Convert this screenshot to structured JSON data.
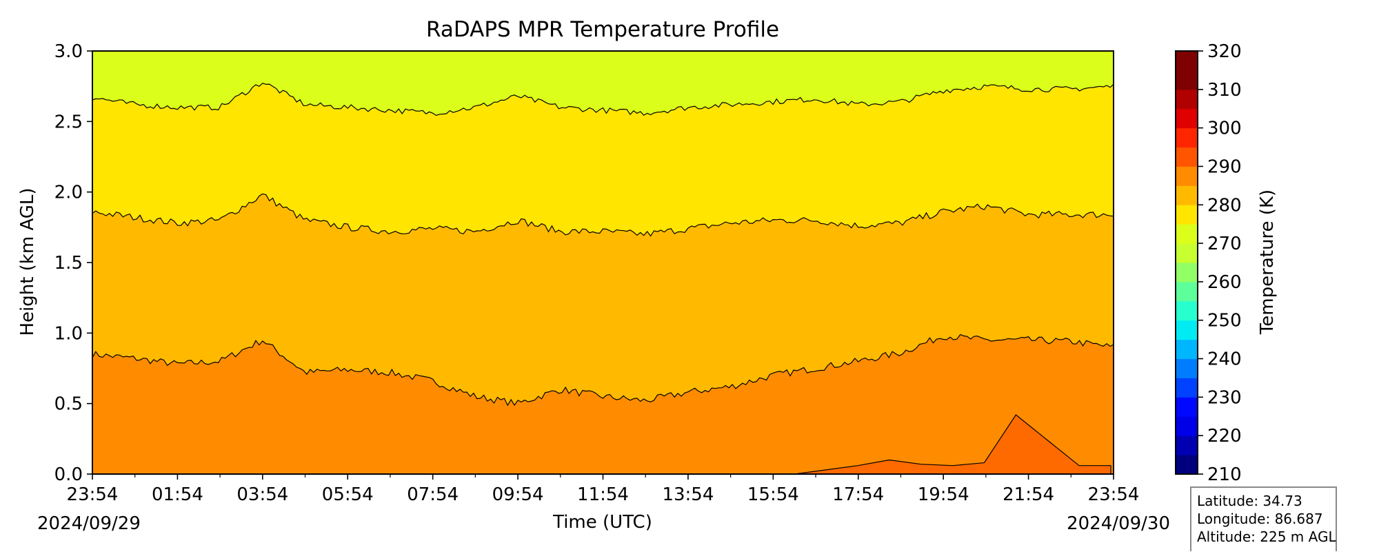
{
  "chart_data": {
    "type": "contour",
    "title": "RaDAPS MPR Temperature Profile",
    "xlabel": "Time (UTC)",
    "ylabel": "Height (km AGL)",
    "x_ticks": [
      "23:54",
      "01:54",
      "03:54",
      "05:54",
      "07:54",
      "09:54",
      "11:54",
      "13:54",
      "15:54",
      "17:54",
      "19:54",
      "21:54",
      "23:54"
    ],
    "x_range": [
      "2024/09/29 23:54",
      "2024/09/30 23:54"
    ],
    "date_start_label": "2024/09/29",
    "date_end_label": "2024/09/30",
    "y_ticks": [
      "0.0",
      "0.5",
      "1.0",
      "1.5",
      "2.0",
      "2.5",
      "3.0"
    ],
    "ylim": [
      0,
      3.0
    ],
    "colorbar": {
      "label": "Temperature (K)",
      "range": [
        210,
        320
      ],
      "step": 5,
      "tick_labels": [
        "210",
        "220",
        "230",
        "240",
        "250",
        "260",
        "270",
        "280",
        "290",
        "300",
        "310",
        "320"
      ],
      "colors": [
        "#00007f",
        "#0000b2",
        "#0000e8",
        "#0008ff",
        "#0042ff",
        "#007cff",
        "#00b6ff",
        "#00ecf2",
        "#27ffcf",
        "#5cff9a",
        "#92ff65",
        "#c7ff30",
        "#dbff1a",
        "#ffe500",
        "#ffba00",
        "#ff8c00",
        "#ff5500",
        "#ff2500",
        "#e00000",
        "#b10000",
        "#7f0000",
        "#7f0000"
      ]
    },
    "filled_bands": [
      {
        "range_K": [
          290,
          295
        ],
        "color": "#ff8c00"
      },
      {
        "range_K": [
          285,
          290
        ],
        "color": "#ffba00"
      },
      {
        "range_K": [
          280,
          285
        ],
        "color": "#ffe500"
      },
      {
        "range_K": [
          275,
          280
        ],
        "color": "#dbff1a"
      },
      {
        "range_K": [
          295,
          300
        ],
        "color": "#ff6a00"
      }
    ],
    "contour_lines": [
      {
        "level_K": 290,
        "approx_height_km": [
          0.85,
          0.82,
          0.78,
          0.8,
          0.95,
          0.72,
          0.74,
          0.72,
          0.66,
          0.55,
          0.5,
          0.6,
          0.55,
          0.52,
          0.58,
          0.62,
          0.7,
          0.75,
          0.8,
          0.86,
          0.98,
          0.95,
          0.95,
          0.94,
          0.9
        ]
      },
      {
        "level_K": 285,
        "approx_height_km": [
          1.86,
          1.82,
          1.78,
          1.8,
          1.98,
          1.8,
          1.75,
          1.72,
          1.74,
          1.72,
          1.8,
          1.72,
          1.72,
          1.7,
          1.74,
          1.78,
          1.8,
          1.8,
          1.76,
          1.78,
          1.86,
          1.9,
          1.84,
          1.84,
          1.84
        ]
      },
      {
        "level_K": 280,
        "approx_height_km": [
          2.67,
          2.62,
          2.6,
          2.6,
          2.78,
          2.62,
          2.6,
          2.58,
          2.56,
          2.6,
          2.68,
          2.6,
          2.58,
          2.56,
          2.6,
          2.62,
          2.64,
          2.66,
          2.62,
          2.64,
          2.72,
          2.75,
          2.73,
          2.73,
          2.75
        ]
      }
    ],
    "warm_patch_295K": {
      "x_range": [
        "16:24",
        "23:54"
      ],
      "approx_top_km": [
        0.0,
        0.03,
        0.06,
        0.1,
        0.07,
        0.06,
        0.08,
        0.42,
        0.24,
        0.06,
        0.06
      ]
    }
  },
  "info_box": {
    "latitude": "Latitude: 34.73",
    "longitude": "Longitude: 86.687",
    "altitude": "Altitude: 225 m AGL"
  }
}
